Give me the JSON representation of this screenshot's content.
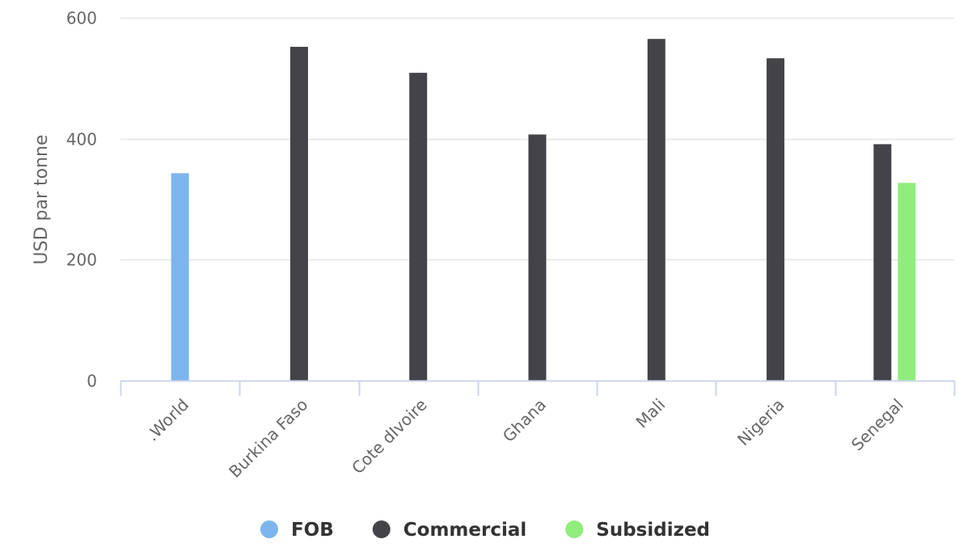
{
  "chart_data": {
    "type": "bar",
    "title": "",
    "xlabel": "",
    "ylabel": "USD par tonne",
    "ylim": [
      0,
      600
    ],
    "yticks": [
      0,
      200,
      400,
      600
    ],
    "grid": true,
    "legend_position": "bottom-center",
    "categories": [
      ".World",
      "Burkina Faso",
      "Cote dIvoire",
      "Ghana",
      "Mali",
      "Nigeria",
      "Senegal"
    ],
    "series": [
      {
        "name": "FOB",
        "color": "#7cb5ec",
        "values": [
          343,
          null,
          null,
          null,
          null,
          null,
          null
        ]
      },
      {
        "name": "Commercial",
        "color": "#434348",
        "values": [
          null,
          552,
          509,
          407,
          565,
          533,
          391
        ]
      },
      {
        "name": "Subsidized",
        "color": "#90ed7d",
        "values": [
          null,
          null,
          null,
          null,
          null,
          null,
          327
        ]
      }
    ]
  }
}
